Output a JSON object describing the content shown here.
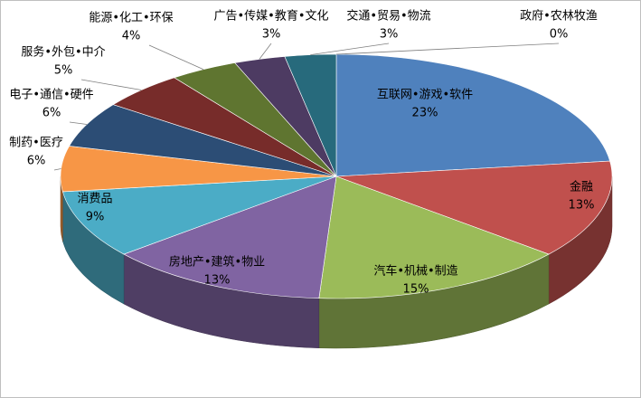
{
  "chart_data": {
    "type": "pie",
    "categories": [
      "互联网•游戏•软件",
      "金融",
      "汽车•机械•制造",
      "房地产•建筑•物业",
      "消费品",
      "制药•医疗",
      "电子•通信•硬件",
      "服务•外包•中介",
      "能源•化工•环保",
      "广告•传媒•教育•文化",
      "交通•贸易•物流",
      "政府•农林牧渔"
    ],
    "values": [
      23,
      13,
      15,
      13,
      9,
      6,
      6,
      5,
      4,
      3,
      3,
      0
    ],
    "value_labels": [
      "23%",
      "13%",
      "15%",
      "13%",
      "9%",
      "6%",
      "6%",
      "5%",
      "4%",
      "3%",
      "3%",
      "0%"
    ],
    "colors": [
      "#4f81bd",
      "#c0504d",
      "#9bbb59",
      "#8064a2",
      "#4bacc6",
      "#f79646",
      "#2c4d75",
      "#772c2a",
      "#5f7530",
      "#4d3b62",
      "#276a7c",
      "#b65708"
    ]
  }
}
